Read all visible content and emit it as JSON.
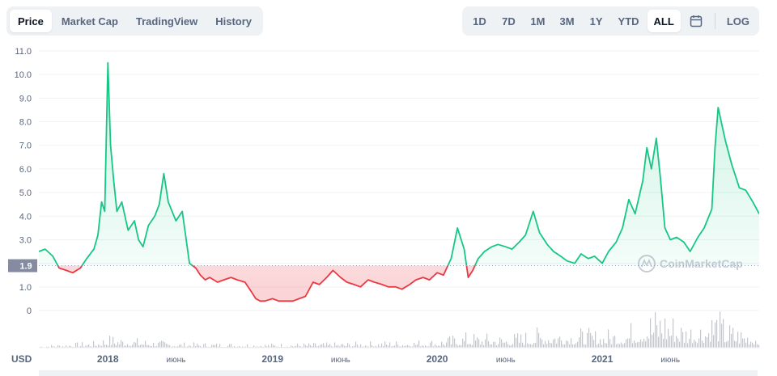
{
  "tabs": [
    {
      "label": "Price",
      "active": true
    },
    {
      "label": "Market Cap",
      "active": false
    },
    {
      "label": "TradingView",
      "active": false
    },
    {
      "label": "History",
      "active": false
    }
  ],
  "ranges": [
    {
      "label": "1D",
      "active": false
    },
    {
      "label": "7D",
      "active": false
    },
    {
      "label": "1M",
      "active": false
    },
    {
      "label": "3M",
      "active": false
    },
    {
      "label": "1Y",
      "active": false
    },
    {
      "label": "YTD",
      "active": false
    },
    {
      "label": "ALL",
      "active": true
    }
  ],
  "calendar_icon": "calendar-icon",
  "log_label": "LOG",
  "currency_label": "USD",
  "watermark": "CoinMarketCap",
  "colors": {
    "up": "#16c784",
    "down": "#ea3943",
    "volume": "#c2c7d6",
    "grid": "#eff2f5",
    "baseline_box": "#858ca2"
  },
  "chart_data": {
    "type": "line",
    "y_ticks": [
      "11.0",
      "10.0",
      "9.0",
      "8.0",
      "7.0",
      "6.0",
      "5.0",
      "4.0",
      "3.0",
      "2.0",
      "1.0",
      "0"
    ],
    "y_tick_values": [
      11,
      10,
      9,
      8,
      7,
      6,
      5,
      4,
      3,
      2,
      1,
      0
    ],
    "ylim": [
      0,
      11
    ],
    "baseline": {
      "value": 1.9,
      "label": "1.9"
    },
    "x_tick_labels": [
      "2018",
      "июнь",
      "2019",
      "июнь",
      "2020",
      "июнь",
      "2021",
      "июнь"
    ],
    "x_tick_dates": [
      "2018-01-01",
      "2018-06-01",
      "2019-01-01",
      "2019-06-01",
      "2020-01-01",
      "2020-06-01",
      "2021-01-01",
      "2021-06-01"
    ],
    "xlim": [
      "2017-08-01",
      "2021-12-15"
    ],
    "series": [
      {
        "x": [
          "2017-08-01",
          "2017-08-15",
          "2017-09-01",
          "2017-09-15",
          "2017-10-01",
          "2017-10-15",
          "2017-11-01",
          "2017-11-15",
          "2017-12-01",
          "2017-12-10",
          "2017-12-18",
          "2017-12-25",
          "2018-01-01",
          "2018-01-07",
          "2018-01-14",
          "2018-01-21",
          "2018-02-01",
          "2018-02-15",
          "2018-03-01",
          "2018-03-10",
          "2018-03-20",
          "2018-04-01",
          "2018-04-15",
          "2018-04-25",
          "2018-05-05",
          "2018-05-15",
          "2018-06-01",
          "2018-06-15",
          "2018-07-01",
          "2018-07-15",
          "2018-07-25",
          "2018-08-05",
          "2018-08-15",
          "2018-09-01",
          "2018-09-15",
          "2018-10-01",
          "2018-10-15",
          "2018-11-01",
          "2018-11-15",
          "2018-11-25",
          "2018-12-05",
          "2018-12-15",
          "2019-01-01",
          "2019-01-15",
          "2019-02-01",
          "2019-02-15",
          "2019-03-01",
          "2019-03-15",
          "2019-04-01",
          "2019-04-15",
          "2019-05-01",
          "2019-05-15",
          "2019-06-01",
          "2019-06-15",
          "2019-07-01",
          "2019-07-15",
          "2019-08-01",
          "2019-08-15",
          "2019-09-01",
          "2019-09-15",
          "2019-10-01",
          "2019-10-15",
          "2019-11-01",
          "2019-11-15",
          "2019-12-01",
          "2019-12-15",
          "2020-01-01",
          "2020-01-15",
          "2020-02-01",
          "2020-02-15",
          "2020-03-01",
          "2020-03-10",
          "2020-03-20",
          "2020-04-01",
          "2020-04-15",
          "2020-05-01",
          "2020-05-15",
          "2020-06-01",
          "2020-06-15",
          "2020-07-01",
          "2020-07-15",
          "2020-08-01",
          "2020-08-15",
          "2020-09-01",
          "2020-09-15",
          "2020-10-01",
          "2020-10-15",
          "2020-11-01",
          "2020-11-15",
          "2020-12-01",
          "2020-12-15",
          "2021-01-01",
          "2021-01-15",
          "2021-02-01",
          "2021-02-15",
          "2021-03-01",
          "2021-03-15",
          "2021-04-01",
          "2021-04-10",
          "2021-04-20",
          "2021-05-01",
          "2021-05-10",
          "2021-05-20",
          "2021-06-01",
          "2021-06-15",
          "2021-07-01",
          "2021-07-15",
          "2021-08-01",
          "2021-08-15",
          "2021-09-01",
          "2021-09-08",
          "2021-09-15",
          "2021-10-01",
          "2021-10-15",
          "2021-11-01",
          "2021-11-15",
          "2021-12-01",
          "2021-12-15"
        ],
        "y": [
          2.5,
          2.6,
          2.3,
          1.8,
          1.7,
          1.6,
          1.8,
          2.2,
          2.6,
          3.2,
          4.6,
          4.2,
          10.5,
          7.0,
          5.5,
          4.2,
          4.6,
          3.4,
          3.8,
          3.0,
          2.7,
          3.6,
          4.0,
          4.5,
          5.8,
          4.6,
          3.8,
          4.2,
          2.0,
          1.8,
          1.5,
          1.3,
          1.4,
          1.2,
          1.3,
          1.4,
          1.3,
          1.2,
          0.8,
          0.5,
          0.4,
          0.4,
          0.5,
          0.4,
          0.4,
          0.4,
          0.5,
          0.6,
          1.2,
          1.1,
          1.4,
          1.7,
          1.4,
          1.2,
          1.1,
          1.0,
          1.3,
          1.2,
          1.1,
          1.0,
          1.0,
          0.9,
          1.1,
          1.3,
          1.4,
          1.3,
          1.6,
          1.5,
          2.2,
          3.5,
          2.6,
          1.4,
          1.7,
          2.2,
          2.5,
          2.7,
          2.8,
          2.7,
          2.6,
          2.9,
          3.2,
          4.2,
          3.3,
          2.8,
          2.5,
          2.3,
          2.1,
          2.0,
          2.4,
          2.2,
          2.3,
          2.0,
          2.5,
          2.9,
          3.5,
          4.7,
          4.1,
          5.5,
          6.9,
          6.0,
          7.3,
          5.6,
          3.5,
          3.0,
          3.1,
          2.9,
          2.5,
          3.1,
          3.5,
          4.3,
          6.9,
          8.6,
          7.2,
          6.2,
          5.2,
          5.1,
          4.6,
          4.1
        ],
        "name": ""
      }
    ],
    "volume": {
      "x": [
        "2017-08-01",
        "2017-12-01",
        "2018-01-01",
        "2018-06-01",
        "2019-01-01",
        "2019-06-01",
        "2020-01-01",
        "2020-03-01",
        "2020-06-01",
        "2020-09-01",
        "2021-01-01",
        "2021-03-01",
        "2021-04-01",
        "2021-05-15",
        "2021-07-01",
        "2021-08-15",
        "2021-09-08",
        "2021-10-01",
        "2021-11-01",
        "2021-12-15"
      ],
      "y": [
        0.05,
        0.15,
        0.3,
        0.12,
        0.1,
        0.12,
        0.2,
        0.35,
        0.3,
        0.5,
        0.4,
        0.55,
        0.85,
        1.0,
        0.6,
        0.7,
        1.0,
        0.6,
        0.5,
        0.4
      ]
    }
  }
}
